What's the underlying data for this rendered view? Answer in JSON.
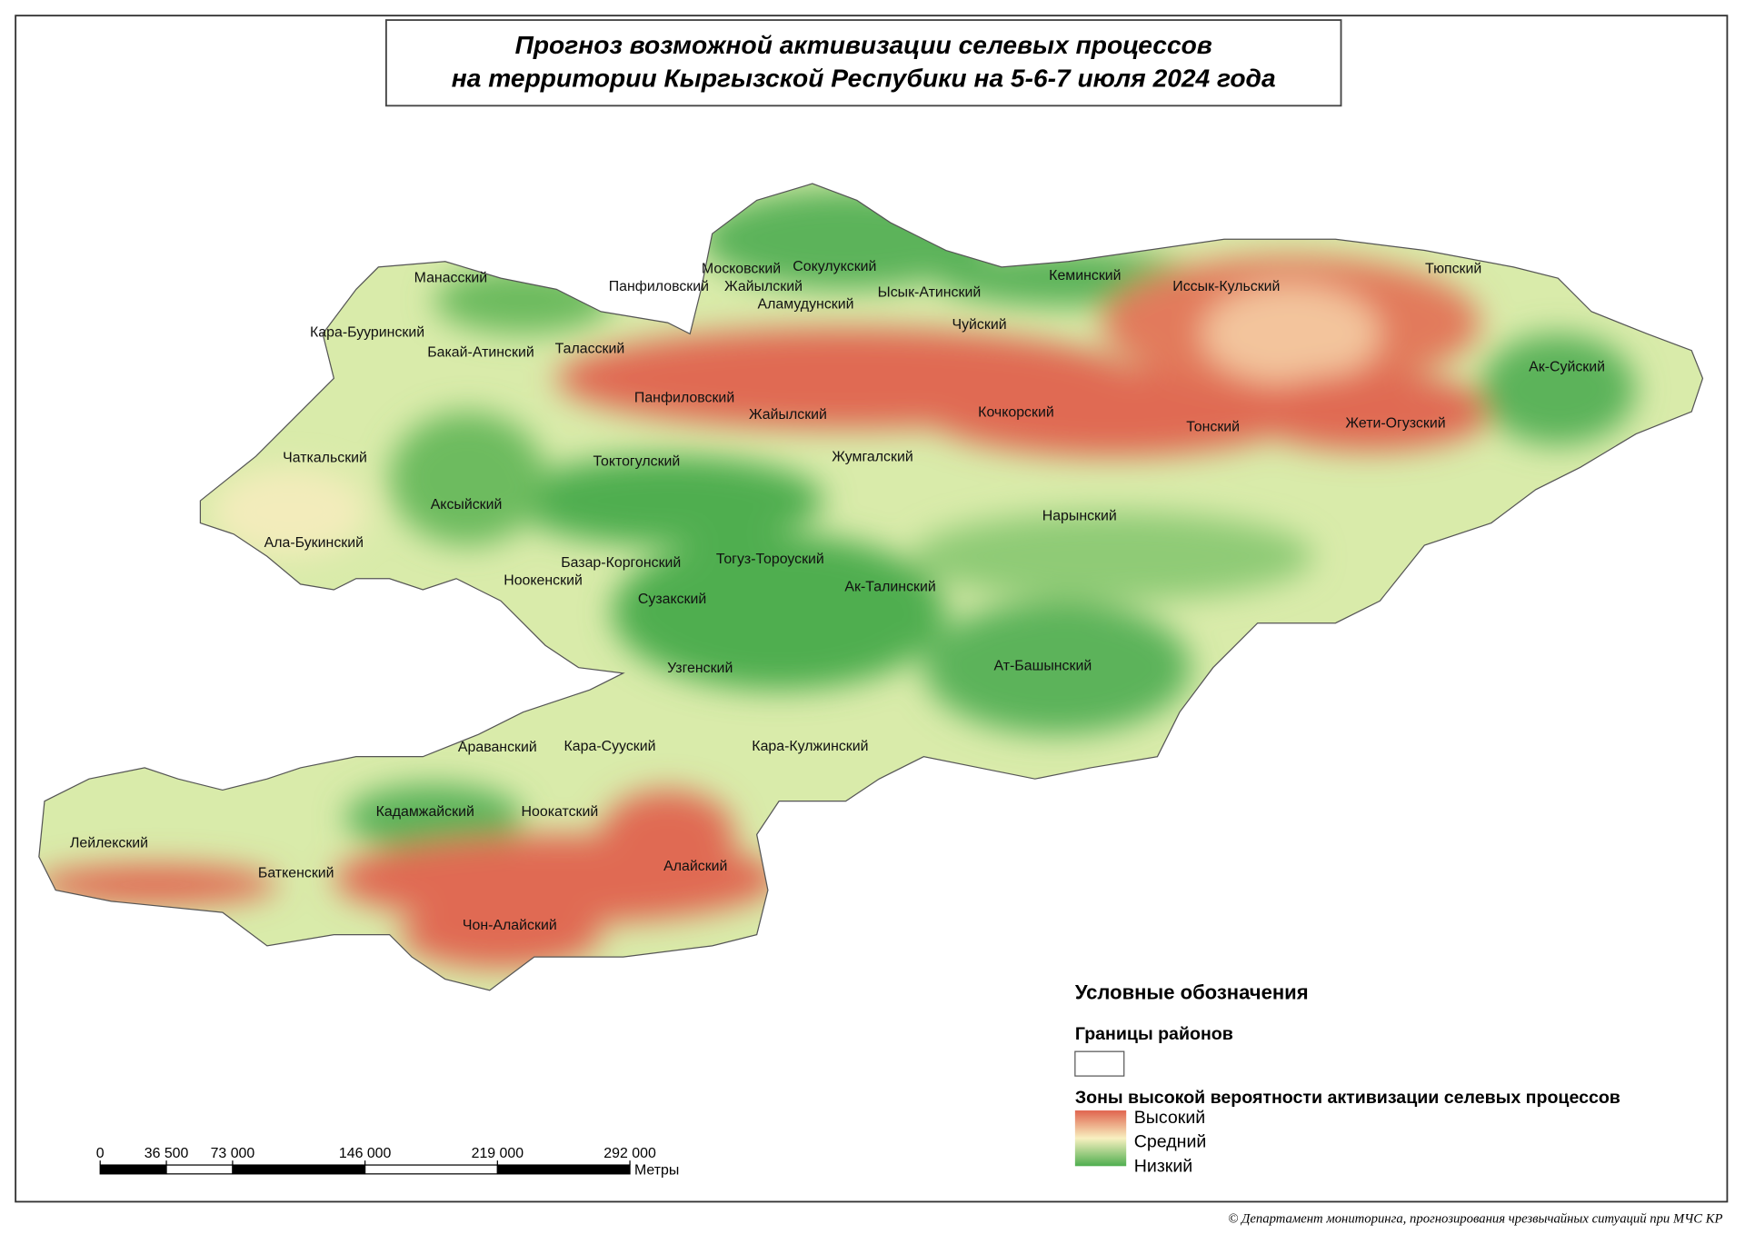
{
  "title": [
    "Прогноз возможной активизации селевых процессов",
    "на территории Кыргызской Респубики на 5-6-7 июля 2024 года"
  ],
  "districts": [
    "Манасский",
    "Панфиловский",
    "Московский",
    "Сокулукский",
    "Жайылский",
    "Аламудунский",
    "Ысык-Атинский",
    "Кеминский",
    "Иссык-Кульский",
    "Тюпский",
    "Кара-Бууринский",
    "Бакай-Атинский",
    "Таласский",
    "Чуйский",
    "Ак-Суйский",
    "Панфиловский",
    "Жайылский",
    "Кочкорский",
    "Тонский",
    "Жети-Огузский",
    "Чаткальский",
    "Токтогулский",
    "Жумгалский",
    "Аксыйский",
    "Нарынский",
    "Ала-Букинский",
    "Базар-Коргонский",
    "Тогуз-Тороуский",
    "Ноокенский",
    "Ак-Талинский",
    "Сузакский",
    "Узгенский",
    "Ат-Башынский",
    "Араванский",
    "Кара-Сууский",
    "Кара-Кулжинский",
    "Кадамжайский",
    "Ноокатский",
    "Лейлекский",
    "Баткенский",
    "Алайский",
    "Чон-Алайский"
  ],
  "legend": {
    "title": "Условные обозначения",
    "boundaries_title": "Границы районов",
    "zones_title": "Зоны высокой вероятности активизации селевых процессов",
    "levels": [
      "Высокий",
      "Средний",
      "Низкий"
    ]
  },
  "scale_bar": {
    "ticks": [
      0,
      {
        "value": 36500,
        "label": "36 500"
      },
      {
        "value": 73000,
        "label": "73 000"
      },
      {
        "value": 146000,
        "label": "146 000"
      },
      {
        "value": 219000,
        "label": "219 000"
      },
      {
        "value": 292000,
        "label": "292 000"
      }
    ],
    "unit": "Метры"
  },
  "copyright": "© Департамент мониторинга, прогнозирования чрезвычайных ситуаций при МЧС КР"
}
